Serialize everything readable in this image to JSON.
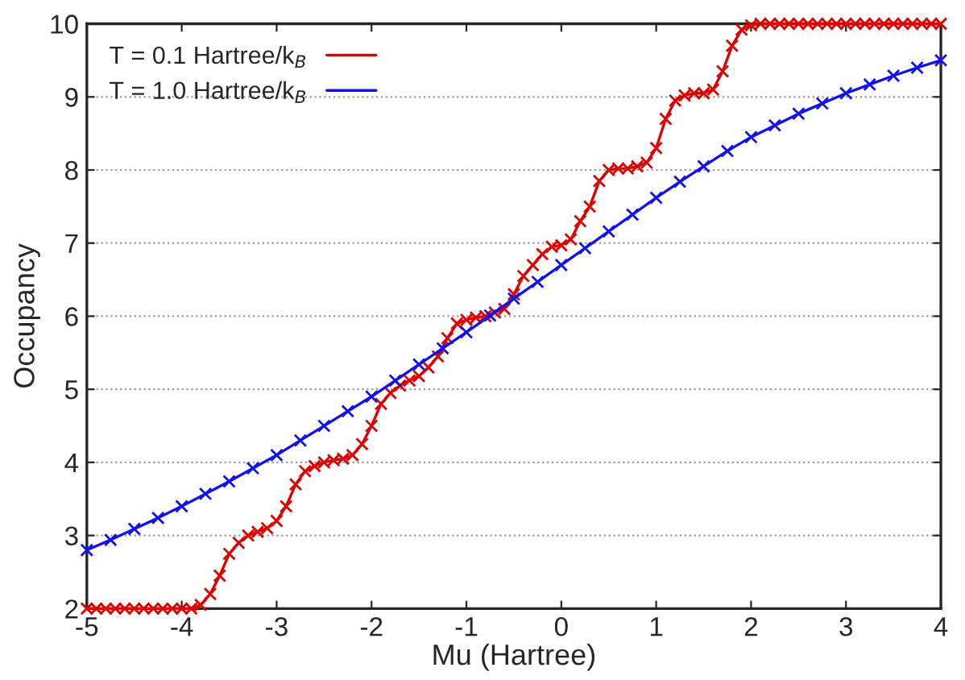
{
  "chart_data": {
    "type": "line",
    "xlabel": "Mu (Hartree)",
    "ylabel": "Occupancy",
    "xlim": [
      -5,
      4
    ],
    "ylim": [
      2,
      10
    ],
    "xticks": [
      -5,
      -4,
      -3,
      -2,
      -1,
      0,
      1,
      2,
      3,
      4
    ],
    "yticks": [
      2,
      3,
      4,
      5,
      6,
      7,
      8,
      9,
      10
    ],
    "grid": "y",
    "legend": "top left",
    "marker": "cross",
    "line_style": "solid",
    "series": [
      {
        "name": "T = 0.1 Hartree/k$_{B}$",
        "color": "#e00000",
        "x": [
          -5.0,
          -4.9,
          -4.8,
          -4.7,
          -4.6,
          -4.5,
          -4.4,
          -4.3,
          -4.2,
          -4.1,
          -4.0,
          -3.9,
          -3.8,
          -3.7,
          -3.6,
          -3.5,
          -3.4,
          -3.3,
          -3.2,
          -3.1,
          -3.0,
          -2.9,
          -2.8,
          -2.7,
          -2.6,
          -2.5,
          -2.4,
          -2.3,
          -2.2,
          -2.1,
          -2.0,
          -1.9,
          -1.8,
          -1.7,
          -1.6,
          -1.5,
          -1.4,
          -1.3,
          -1.2,
          -1.1,
          -1.0,
          -0.9,
          -0.8,
          -0.7,
          -0.6,
          -0.5,
          -0.4,
          -0.3,
          -0.2,
          -0.1,
          0.0,
          0.1,
          0.2,
          0.3,
          0.4,
          0.5,
          0.6,
          0.7,
          0.8,
          0.9,
          1.0,
          1.1,
          1.2,
          1.3,
          1.4,
          1.5,
          1.6,
          1.7,
          1.8,
          1.9,
          2.0,
          2.1,
          2.2,
          2.3,
          2.4,
          2.5,
          2.6,
          2.7,
          2.8,
          2.9,
          3.0,
          3.1,
          3.2,
          3.3,
          3.4,
          3.5,
          3.6,
          3.7,
          3.8,
          3.9,
          4.0
        ],
        "values": [
          2.0,
          2.0,
          2.0,
          2.0,
          2.0,
          2.0,
          2.0,
          2.0,
          2.0,
          2.0,
          2.0,
          2.0,
          2.05,
          2.2,
          2.45,
          2.75,
          2.9,
          3.0,
          3.05,
          3.1,
          3.2,
          3.4,
          3.7,
          3.88,
          3.95,
          4.0,
          4.03,
          4.05,
          4.1,
          4.25,
          4.5,
          4.8,
          4.95,
          5.05,
          5.12,
          5.18,
          5.3,
          5.45,
          5.7,
          5.9,
          5.95,
          5.98,
          6.0,
          6.05,
          6.1,
          6.3,
          6.55,
          6.7,
          6.85,
          6.95,
          6.97,
          7.05,
          7.3,
          7.5,
          7.85,
          8.0,
          8.02,
          8.02,
          8.05,
          8.1,
          8.3,
          8.7,
          8.95,
          9.02,
          9.05,
          9.05,
          9.1,
          9.35,
          9.7,
          9.92,
          9.98,
          10.0,
          10.0,
          10.0,
          10.0,
          10.0,
          10.0,
          10.0,
          10.0,
          10.0,
          10.0,
          10.0,
          10.0,
          10.0,
          10.0,
          10.0,
          10.0,
          10.0,
          10.0,
          10.0,
          10.0
        ]
      },
      {
        "name": "T = 1.0 Hartree/k$_{B}$",
        "color": "#1010f0",
        "x": [
          -5,
          -4.75,
          -4.5,
          -4.25,
          -4,
          -3.75,
          -3.5,
          -3.25,
          -3,
          -2.75,
          -2.5,
          -2.25,
          -2,
          -1.75,
          -1.5,
          -1.25,
          -1,
          -0.75,
          -0.5,
          -0.25,
          0,
          0.25,
          0.5,
          0.75,
          1,
          1.25,
          1.5,
          1.75,
          2,
          2.25,
          2.5,
          2.75,
          3,
          3.25,
          3.5,
          3.75,
          4
        ],
        "values": [
          2.8,
          2.94,
          3.09,
          3.24,
          3.4,
          3.57,
          3.74,
          3.92,
          4.1,
          4.3,
          4.5,
          4.7,
          4.9,
          5.12,
          5.34,
          5.56,
          5.78,
          6.01,
          6.24,
          6.47,
          6.7,
          6.93,
          7.16,
          7.39,
          7.62,
          7.84,
          8.05,
          8.26,
          8.45,
          8.61,
          8.77,
          8.91,
          9.05,
          9.17,
          9.29,
          9.4,
          9.5
        ]
      }
    ]
  }
}
